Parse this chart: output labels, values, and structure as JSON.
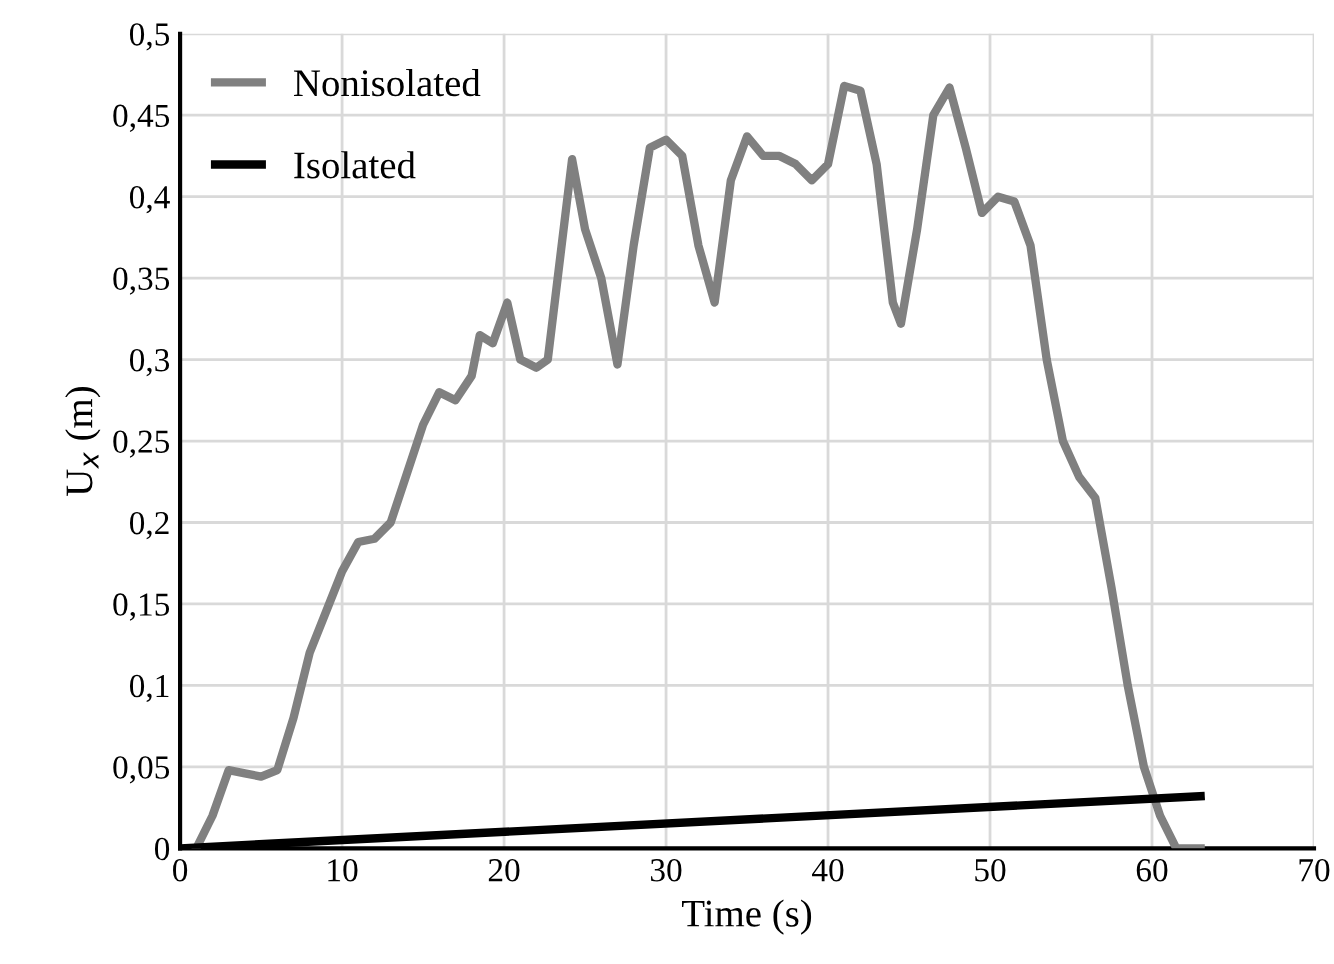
{
  "chart_data": {
    "type": "line",
    "xlabel": "Time (s)",
    "ylabel": "U$_{x}$ (m)",
    "xlim": [
      0,
      70
    ],
    "xticks": [
      0,
      10,
      20,
      30,
      40,
      50,
      60,
      70
    ],
    "ylim": [
      0,
      0.5
    ],
    "yticks": [
      {
        "value": 0,
        "label": "0"
      },
      {
        "value": 0.05,
        "label": "0,05"
      },
      {
        "value": 0.1,
        "label": "0,1"
      },
      {
        "value": 0.15,
        "label": "0,15"
      },
      {
        "value": 0.2,
        "label": "0,2"
      },
      {
        "value": 0.25,
        "label": "0,25"
      },
      {
        "value": 0.3,
        "label": "0,3"
      },
      {
        "value": 0.35,
        "label": "0,35"
      },
      {
        "value": 0.4,
        "label": "0,4"
      },
      {
        "value": 0.45,
        "label": "0,45"
      },
      {
        "value": 0.5,
        "label": "0,5"
      }
    ],
    "grid": true,
    "legend": "top left",
    "marker": "none",
    "line_style": "solid",
    "series": [
      {
        "name": "Nonisolated",
        "color": "#808080",
        "x": [
          1,
          2,
          3,
          4,
          5,
          6,
          7,
          8,
          9,
          10,
          11,
          12,
          13,
          14,
          15,
          16,
          17,
          18,
          18.5,
          19.3,
          20.2,
          21,
          22,
          22.7,
          24.2,
          25,
          26,
          27,
          28,
          29,
          30,
          31,
          32,
          33,
          34,
          35,
          36,
          37,
          38,
          39,
          40,
          41,
          42,
          43,
          44,
          44.5,
          45.5,
          46.5,
          47.5,
          48.5,
          49.5,
          50.5,
          51.5,
          52.5,
          53.5,
          54.5,
          55.5,
          56.5,
          57.5,
          58.5,
          59.5,
          60.5,
          61.5,
          63
        ],
        "values": [
          0,
          0.02,
          0.048,
          0.046,
          0.044,
          0.048,
          0.08,
          0.12,
          0.145,
          0.17,
          0.188,
          0.19,
          0.2,
          0.23,
          0.26,
          0.28,
          0.275,
          0.29,
          0.315,
          0.31,
          0.335,
          0.3,
          0.295,
          0.3,
          0.423,
          0.38,
          0.35,
          0.297,
          0.37,
          0.43,
          0.435,
          0.425,
          0.37,
          0.335,
          0.41,
          0.437,
          0.425,
          0.425,
          0.42,
          0.41,
          0.42,
          0.468,
          0.465,
          0.42,
          0.335,
          0.322,
          0.38,
          0.45,
          0.467,
          0.43,
          0.39,
          0.4,
          0.397,
          0.37,
          0.3,
          0.25,
          0.228,
          0.215,
          0.16,
          0.1,
          0.05,
          0.02,
          0,
          0
        ]
      },
      {
        "name": "Isolated",
        "color": "#000000",
        "x": [
          0,
          63
        ],
        "values": [
          0,
          0.032
        ]
      }
    ]
  }
}
